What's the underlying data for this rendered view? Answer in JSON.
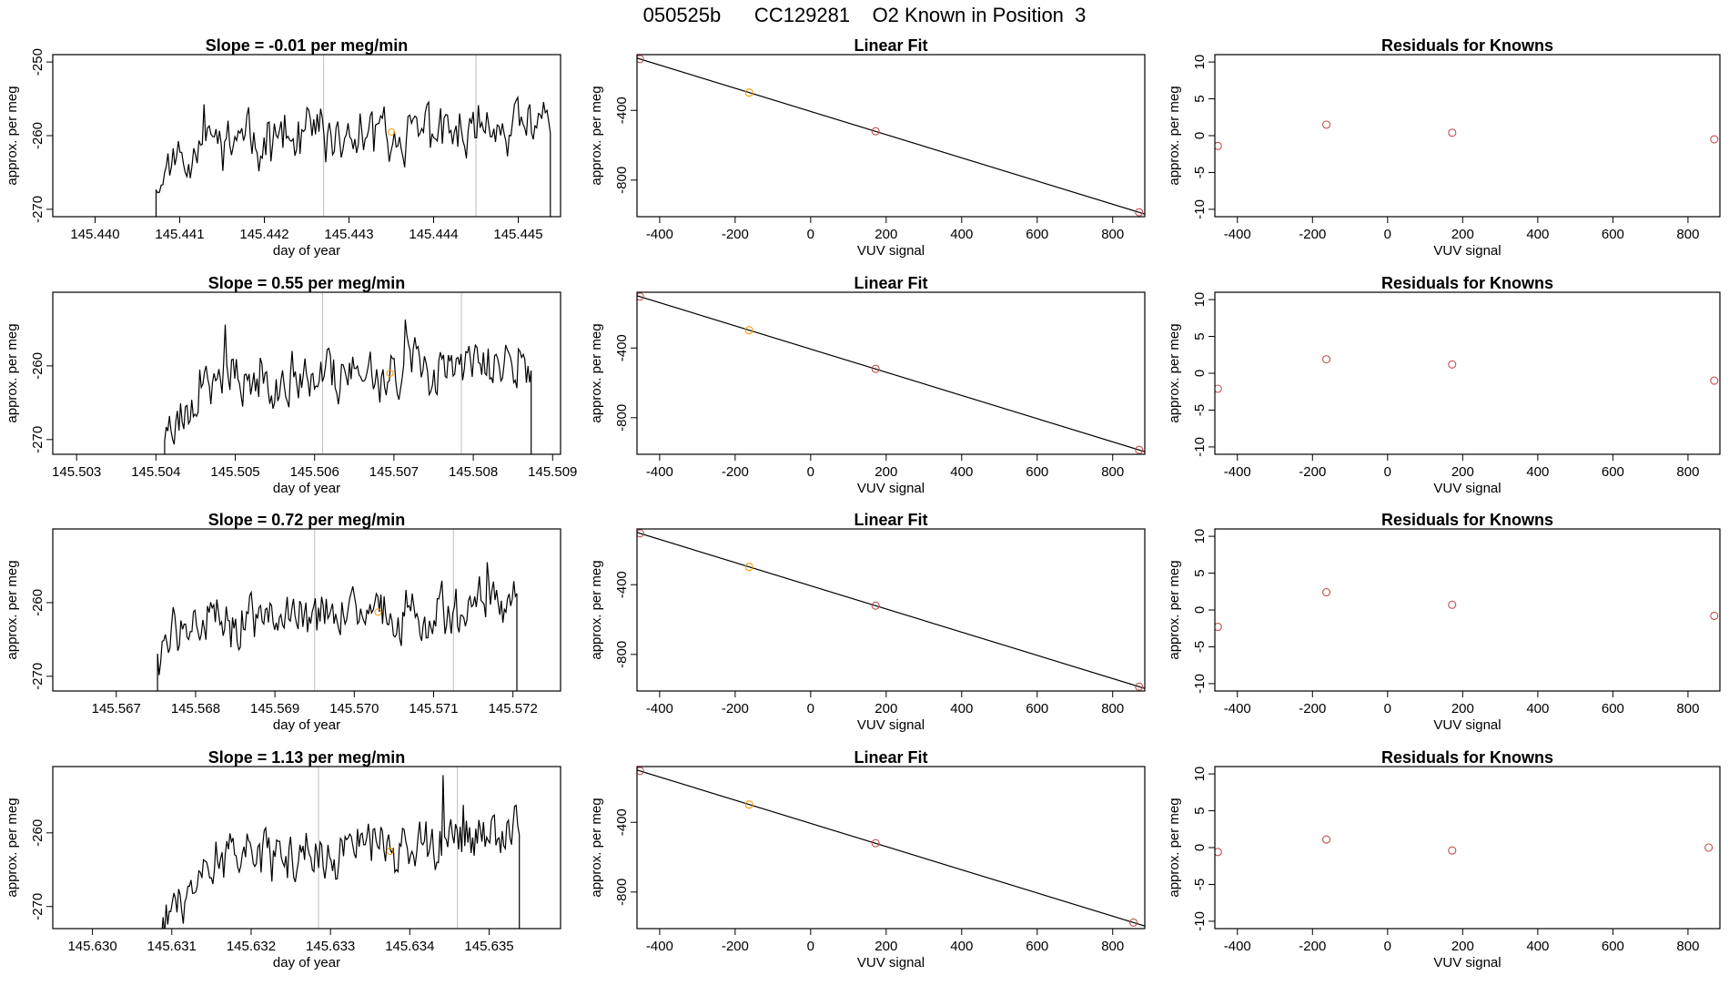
{
  "page": {
    "title": "050525b      CC129281    O2 Known in Position  3"
  },
  "colors": {
    "trace": "#000000",
    "fit_line": "#000000",
    "vline": "#bebebe",
    "known_point": "#c0504d",
    "tank_point": "#ff9900"
  },
  "chart_data": [
    {
      "type": "line",
      "row": 0,
      "col": 0,
      "title": "Slope =  -0.01  per meg/min",
      "xlabel": "day of year",
      "ylabel": "approx. per meg",
      "xlim": [
        145.4395,
        145.4455
      ],
      "ylim": [
        -271,
        -249
      ],
      "x_ticks": [
        145.44,
        145.441,
        145.442,
        145.443,
        145.444,
        145.445
      ],
      "x_tick_labels": [
        "145.440",
        "145.441",
        "145.442",
        "145.443",
        "145.444",
        "145.445"
      ],
      "y_ticks": [
        -270,
        -260,
        -250
      ],
      "y_tick_labels": [
        "-270",
        "-260",
        "-250"
      ],
      "vlines": [
        145.4427,
        145.4445
      ],
      "orange_points": [
        {
          "x": 145.4435,
          "y": -259.5
        }
      ],
      "series": {
        "x_start": 145.44072,
        "x_end": 145.44538,
        "base": -261.5,
        "start_y": -265.5,
        "trend": 3,
        "seed": 11
      }
    },
    {
      "type": "scatter",
      "row": 0,
      "col": 1,
      "title": "Linear Fit",
      "xlabel": "VUV signal",
      "ylabel": "approx. per meg",
      "xlim": [
        -460,
        885
      ],
      "ylim": [
        -1010,
        -80
      ],
      "x_ticks": [
        -400,
        -200,
        0,
        200,
        400,
        600,
        800
      ],
      "x_tick_labels": [
        "-400",
        "-200",
        "0",
        "200",
        "400",
        "600",
        "800"
      ],
      "y_ticks": [
        -800,
        -400
      ],
      "y_tick_labels": [
        "-800",
        "-400"
      ],
      "fit_line": {
        "x0": -460,
        "y0": -100,
        "x1": 885,
        "y1": -995
      },
      "points": [
        {
          "x": -452,
          "y": -105,
          "color": "known"
        },
        {
          "x": -163,
          "y": -298,
          "color": "tank"
        },
        {
          "x": 172,
          "y": -520,
          "color": "known"
        },
        {
          "x": 870,
          "y": -985,
          "color": "known"
        }
      ]
    },
    {
      "type": "scatter",
      "row": 0,
      "col": 2,
      "title": "Residuals for Knowns",
      "xlabel": "VUV signal",
      "ylabel": "approx. per meg",
      "xlim": [
        -460,
        885
      ],
      "ylim": [
        -11,
        11
      ],
      "x_ticks": [
        -400,
        -200,
        0,
        200,
        400,
        600,
        800
      ],
      "x_tick_labels": [
        "-400",
        "-200",
        "0",
        "200",
        "400",
        "600",
        "800"
      ],
      "y_ticks": [
        -10,
        -5,
        0,
        5,
        10
      ],
      "y_tick_labels": [
        "-10",
        "-5",
        "0",
        "5",
        "10"
      ],
      "points": [
        {
          "x": -452,
          "y": -1.4,
          "color": "known"
        },
        {
          "x": -163,
          "y": 1.5,
          "color": "known"
        },
        {
          "x": 172,
          "y": 0.4,
          "color": "known"
        },
        {
          "x": 870,
          "y": -0.5,
          "color": "known"
        }
      ]
    },
    {
      "type": "line",
      "row": 1,
      "col": 0,
      "title": "Slope =  0.55  per meg/min",
      "xlabel": "day of year",
      "ylabel": "approx. per meg",
      "xlim": [
        145.5027,
        145.5091
      ],
      "ylim": [
        -272,
        -250
      ],
      "x_ticks": [
        145.503,
        145.504,
        145.505,
        145.506,
        145.507,
        145.508,
        145.509
      ],
      "x_tick_labels": [
        "145.503",
        "145.504",
        "145.505",
        "145.506",
        "145.507",
        "145.508",
        "145.509"
      ],
      "y_ticks": [
        -270,
        -260
      ],
      "y_tick_labels": [
        "-270",
        "-260"
      ],
      "vlines": [
        145.5061,
        145.50785
      ],
      "orange_points": [
        {
          "x": 145.50695,
          "y": -261
        }
      ],
      "series": {
        "x_start": 145.50411,
        "x_end": 145.50873,
        "base": -262.5,
        "start_y": -268.5,
        "trend": 3,
        "seed": 23
      }
    },
    {
      "type": "scatter",
      "row": 1,
      "col": 1,
      "title": "Linear Fit",
      "xlabel": "VUV signal",
      "ylabel": "approx. per meg",
      "xlim": [
        -460,
        885
      ],
      "ylim": [
        -1010,
        -80
      ],
      "x_ticks": [
        -400,
        -200,
        0,
        200,
        400,
        600,
        800
      ],
      "x_tick_labels": [
        "-400",
        "-200",
        "0",
        "200",
        "400",
        "600",
        "800"
      ],
      "y_ticks": [
        -800,
        -400
      ],
      "y_tick_labels": [
        "-800",
        "-400"
      ],
      "fit_line": {
        "x0": -460,
        "y0": -100,
        "x1": 885,
        "y1": -995
      },
      "points": [
        {
          "x": -452,
          "y": -105,
          "color": "known"
        },
        {
          "x": -163,
          "y": -298,
          "color": "tank"
        },
        {
          "x": 172,
          "y": -520,
          "color": "known"
        },
        {
          "x": 870,
          "y": -985,
          "color": "known"
        }
      ]
    },
    {
      "type": "scatter",
      "row": 1,
      "col": 2,
      "title": "Residuals for Knowns",
      "xlabel": "VUV signal",
      "ylabel": "approx. per meg",
      "xlim": [
        -460,
        885
      ],
      "ylim": [
        -11,
        11
      ],
      "x_ticks": [
        -400,
        -200,
        0,
        200,
        400,
        600,
        800
      ],
      "x_tick_labels": [
        "-400",
        "-200",
        "0",
        "200",
        "400",
        "600",
        "800"
      ],
      "y_ticks": [
        -10,
        -5,
        0,
        5,
        10
      ],
      "y_tick_labels": [
        "-10",
        "-5",
        "0",
        "5",
        "10"
      ],
      "points": [
        {
          "x": -452,
          "y": -2.1,
          "color": "known"
        },
        {
          "x": -163,
          "y": 1.9,
          "color": "known"
        },
        {
          "x": 172,
          "y": 1.2,
          "color": "known"
        },
        {
          "x": 870,
          "y": -1.0,
          "color": "known"
        }
      ]
    },
    {
      "type": "line",
      "row": 2,
      "col": 0,
      "title": "Slope =  0.72  per meg/min",
      "xlabel": "day of year",
      "ylabel": "approx. per meg",
      "xlim": [
        145.5662,
        145.5726
      ],
      "ylim": [
        -272,
        -250
      ],
      "x_ticks": [
        145.567,
        145.568,
        145.569,
        145.57,
        145.571,
        145.572
      ],
      "x_tick_labels": [
        "145.567",
        "145.568",
        "145.569",
        "145.570",
        "145.571",
        "145.572"
      ],
      "y_ticks": [
        -270,
        -260
      ],
      "y_tick_labels": [
        "-270",
        "-260"
      ],
      "vlines": [
        145.5695,
        145.57125
      ],
      "orange_points": [
        {
          "x": 145.5703,
          "y": -261.3
        }
      ],
      "series": {
        "x_start": 145.56752,
        "x_end": 145.57205,
        "base": -263,
        "start_y": -266,
        "trend": 2.5,
        "seed": 37
      }
    },
    {
      "type": "scatter",
      "row": 2,
      "col": 1,
      "title": "Linear Fit",
      "xlabel": "VUV signal",
      "ylabel": "approx. per meg",
      "xlim": [
        -460,
        885
      ],
      "ylim": [
        -1010,
        -80
      ],
      "x_ticks": [
        -400,
        -200,
        0,
        200,
        400,
        600,
        800
      ],
      "x_tick_labels": [
        "-400",
        "-200",
        "0",
        "200",
        "400",
        "600",
        "800"
      ],
      "y_ticks": [
        -800,
        -400
      ],
      "y_tick_labels": [
        "-800",
        "-400"
      ],
      "fit_line": {
        "x0": -460,
        "y0": -100,
        "x1": 885,
        "y1": -995
      },
      "points": [
        {
          "x": -452,
          "y": -105,
          "color": "known"
        },
        {
          "x": -163,
          "y": -298,
          "color": "tank"
        },
        {
          "x": 172,
          "y": -520,
          "color": "known"
        },
        {
          "x": 870,
          "y": -985,
          "color": "known"
        }
      ]
    },
    {
      "type": "scatter",
      "row": 2,
      "col": 2,
      "title": "Residuals for Knowns",
      "xlabel": "VUV signal",
      "ylabel": "approx. per meg",
      "xlim": [
        -460,
        885
      ],
      "ylim": [
        -11,
        11
      ],
      "x_ticks": [
        -400,
        -200,
        0,
        200,
        400,
        600,
        800
      ],
      "x_tick_labels": [
        "-400",
        "-200",
        "0",
        "200",
        "400",
        "600",
        "800"
      ],
      "y_ticks": [
        -10,
        -5,
        0,
        5,
        10
      ],
      "y_tick_labels": [
        "-10",
        "-5",
        "0",
        "5",
        "10"
      ],
      "points": [
        {
          "x": -452,
          "y": -2.3,
          "color": "known"
        },
        {
          "x": -163,
          "y": 2.4,
          "color": "known"
        },
        {
          "x": 172,
          "y": 0.7,
          "color": "known"
        },
        {
          "x": 870,
          "y": -0.8,
          "color": "known"
        }
      ]
    },
    {
      "type": "line",
      "row": 3,
      "col": 0,
      "title": "Slope =  1.13  per meg/min",
      "xlabel": "day of year",
      "ylabel": "approx. per meg",
      "xlim": [
        145.6295,
        145.6359
      ],
      "ylim": [
        -273,
        -251
      ],
      "x_ticks": [
        145.63,
        145.631,
        145.632,
        145.633,
        145.634,
        145.635
      ],
      "x_tick_labels": [
        "145.630",
        "145.631",
        "145.632",
        "145.633",
        "145.634",
        "145.635"
      ],
      "y_ticks": [
        -270,
        -260
      ],
      "y_tick_labels": [
        "-270",
        "-260"
      ],
      "vlines": [
        145.63285,
        145.6346
      ],
      "orange_points": [
        {
          "x": 145.63375,
          "y": -262.5
        }
      ],
      "series": {
        "x_start": 145.63087,
        "x_end": 145.63538,
        "base": -265,
        "start_y": -272,
        "trend": 5,
        "seed": 53
      }
    },
    {
      "type": "scatter",
      "row": 3,
      "col": 1,
      "title": "Linear Fit",
      "xlabel": "VUV signal",
      "ylabel": "approx. per meg",
      "xlim": [
        -460,
        885
      ],
      "ylim": [
        -1010,
        -80
      ],
      "x_ticks": [
        -400,
        -200,
        0,
        200,
        400,
        600,
        800
      ],
      "x_tick_labels": [
        "-400",
        "-200",
        "0",
        "200",
        "400",
        "600",
        "800"
      ],
      "y_ticks": [
        -800,
        -400
      ],
      "y_tick_labels": [
        "-800",
        "-400"
      ],
      "fit_line": {
        "x0": -460,
        "y0": -100,
        "x1": 885,
        "y1": -995
      },
      "points": [
        {
          "x": -452,
          "y": -105,
          "color": "known"
        },
        {
          "x": -163,
          "y": -298,
          "color": "tank"
        },
        {
          "x": 172,
          "y": -520,
          "color": "known"
        },
        {
          "x": 855,
          "y": -975,
          "color": "known"
        }
      ]
    },
    {
      "type": "scatter",
      "row": 3,
      "col": 2,
      "title": "Residuals for Knowns",
      "xlabel": "VUV signal",
      "ylabel": "approx. per meg",
      "xlim": [
        -460,
        885
      ],
      "ylim": [
        -11,
        11
      ],
      "x_ticks": [
        -400,
        -200,
        0,
        200,
        400,
        600,
        800
      ],
      "x_tick_labels": [
        "-400",
        "-200",
        "0",
        "200",
        "400",
        "600",
        "800"
      ],
      "y_ticks": [
        -10,
        -5,
        0,
        5,
        10
      ],
      "y_tick_labels": [
        "-10",
        "-5",
        "0",
        "5",
        "10"
      ],
      "points": [
        {
          "x": -452,
          "y": -0.6,
          "color": "known"
        },
        {
          "x": -163,
          "y": 1.1,
          "color": "known"
        },
        {
          "x": 172,
          "y": -0.4,
          "color": "known"
        },
        {
          "x": 855,
          "y": 0.0,
          "color": "known"
        }
      ]
    }
  ]
}
